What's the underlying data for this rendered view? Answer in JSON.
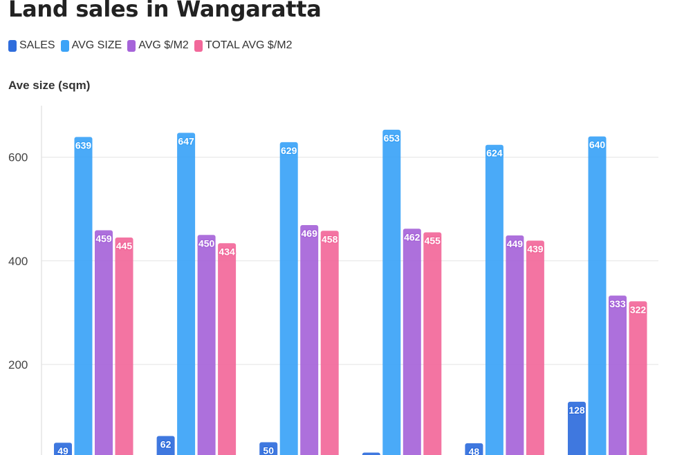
{
  "chart_data": {
    "type": "bar",
    "title": "Land sales in Wangaratta",
    "ylabel": "Ave size (sqm)",
    "xlabel": "",
    "ylim": [
      0,
      690
    ],
    "yticks": [
      200,
      400,
      600
    ],
    "grid": true,
    "legend_position": "top-left",
    "categories": [
      "",
      "",
      "",
      "",
      "",
      ""
    ],
    "series": [
      {
        "name": "SALES",
        "color": "#2f6ddc",
        "values": [
          49,
          62,
          50,
          30,
          48,
          128
        ]
      },
      {
        "name": "AVG SIZE",
        "color": "#3ba3f7",
        "values": [
          639,
          647,
          629,
          653,
          624,
          640
        ]
      },
      {
        "name": "AVG $/M2",
        "color": "#a664d9",
        "values": [
          459,
          450,
          469,
          462,
          449,
          333
        ]
      },
      {
        "name": "TOTAL AVG $/M2",
        "color": "#f2689a",
        "values": [
          445,
          434,
          458,
          455,
          439,
          322
        ]
      }
    ]
  }
}
